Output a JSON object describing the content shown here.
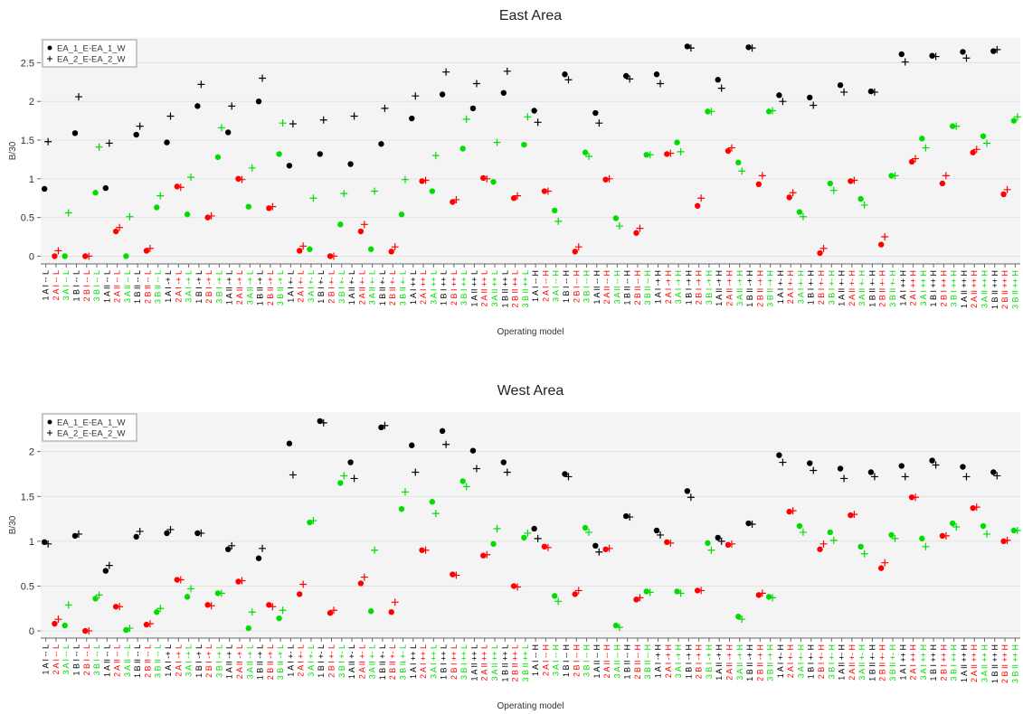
{
  "chart_data": [
    {
      "type": "scatter",
      "title": "East Area",
      "x_label": "Operating model",
      "y_label": "B/30",
      "categories": [
        "1 A I -- L",
        "2 A I -- L",
        "3 A I -- L",
        "1 B I -- L",
        "2 B I -- L",
        "3 B I -- L",
        "1 A II -- L",
        "2 A II -- L",
        "3 A II -- L",
        "1 B II -- L",
        "2 B II -- L",
        "3 B II -- L",
        "1 A I -+ L",
        "2 A I -+ L",
        "3 A I -+ L",
        "1 B I -+ L",
        "2 B I -+ L",
        "3 B I -+ L",
        "1 A II -+ L",
        "2 A II -+ L",
        "3 A II -+ L",
        "1 B II -+ L",
        "2 B II -+ L",
        "3 B II -+ L",
        "1 A I +- L",
        "2 A I +- L",
        "3 A I +- L",
        "1 B I +- L",
        "2 B I +- L",
        "3 B I +- L",
        "1 A II +- L",
        "2 A II +- L",
        "3 A II +- L",
        "1 B II +- L",
        "2 B II +- L",
        "3 B II +- L",
        "1 A I ++ L",
        "2 A I ++ L",
        "3 A I ++ L",
        "1 B I ++ L",
        "2 B I ++ L",
        "3 B I ++ L",
        "1 A II ++ L",
        "2 A II ++ L",
        "3 A II ++ L",
        "1 B II ++ L",
        "2 B II ++ L",
        "3 B II ++ L",
        "1 A I -- H",
        "2 A I -- H",
        "3 A I -- H",
        "1 B I -- H",
        "2 B I -- H",
        "3 B I -- H",
        "1 A II -- H",
        "2 A II -- H",
        "3 A II -- H",
        "1 B II -- H",
        "2 B II -- H",
        "3 B II -- H",
        "1 A I -+ H",
        "2 A I -+ H",
        "3 A I -+ H",
        "1 B I -+ H",
        "2 B I -+ H",
        "3 B I -+ H",
        "1 A II -+ H",
        "2 A II -+ H",
        "3 A II -+ H",
        "1 B II -+ H",
        "2 B II -+ H",
        "3 B II -+ H",
        "1 A I +- H",
        "2 A I +- H",
        "3 A I +- H",
        "1 B I +- H",
        "2 B I +- H",
        "3 B I +- H",
        "1 A II +- H",
        "2 A II +- H",
        "3 A II +- H",
        "1 B II +- H",
        "2 B II +- H",
        "3 B II +- H",
        "1 A I ++ H",
        "2 A I ++ H",
        "3 A I ++ H",
        "1 B I ++ H",
        "2 B I ++ H",
        "3 B I ++ H",
        "1 A II ++ H",
        "2 A II ++ H",
        "3 A II ++ H",
        "1 B II ++ H",
        "2 B II ++ H",
        "3 B II ++ H"
      ],
      "color_cycle": [
        "#000000",
        "#ff0000",
        "#00dd00"
      ],
      "series": [
        {
          "name": "EA_1_E-EA_1_W",
          "color": "#000000",
          "marker": "circle",
          "values": [
            0.87,
            0,
            0,
            1.59,
            0,
            0.82,
            0.88,
            0.32,
            0,
            1.57,
            0.07,
            0.63,
            1.47,
            0.9,
            0.54,
            1.94,
            0.5,
            1.28,
            1.6,
            1.0,
            0.64,
            2.0,
            0.62,
            1.32,
            1.17,
            0.07,
            0.09,
            1.32,
            0,
            0.41,
            1.19,
            0.32,
            0.09,
            1.45,
            0.06,
            0.54,
            1.78,
            0.97,
            0.84,
            2.09,
            0.7,
            1.39,
            1.91,
            1.01,
            0.96,
            2.11,
            0.75,
            1.44,
            1.88,
            0.84,
            0.59,
            2.35,
            0.06,
            1.34,
            1.85,
            0.99,
            0.49,
            2.33,
            0.3,
            1.31,
            2.35,
            1.32,
            1.47,
            2.71,
            0.65,
            1.87,
            2.28,
            1.36,
            1.21,
            2.7,
            0.93,
            1.87,
            2.08,
            0.76,
            0.57,
            2.05,
            0.04,
            0.94,
            2.21,
            0.97,
            0.74,
            2.13,
            0.15,
            1.04,
            2.61,
            1.22,
            1.52,
            2.59,
            0.94,
            1.68,
            2.64,
            1.34,
            1.55,
            2.65,
            0.8,
            1.75
          ]
        },
        {
          "name": "EA_2_E-EA_2_W",
          "color": "#000000",
          "marker": "plus",
          "values": [
            1.48,
            0.07,
            0.56,
            2.06,
            0,
            1.41,
            1.46,
            0.37,
            0.51,
            1.68,
            0.1,
            0.78,
            1.81,
            0.89,
            1.02,
            2.22,
            0.52,
            1.66,
            1.94,
            0.99,
            1.14,
            2.3,
            0.64,
            1.72,
            1.71,
            0.13,
            0.75,
            1.76,
            0,
            0.81,
            1.81,
            0.41,
            0.84,
            1.91,
            0.12,
            0.99,
            2.07,
            0.98,
            1.3,
            2.38,
            0.73,
            1.77,
            2.23,
            1.0,
            1.47,
            2.39,
            0.78,
            1.8,
            1.73,
            0.84,
            0.45,
            2.28,
            0.12,
            1.29,
            1.72,
            1.0,
            0.39,
            2.29,
            0.36,
            1.31,
            2.23,
            1.33,
            1.35,
            2.69,
            0.75,
            1.87,
            2.17,
            1.4,
            1.1,
            2.69,
            1.04,
            1.88,
            2.0,
            0.82,
            0.51,
            1.95,
            0.1,
            0.85,
            2.12,
            0.98,
            0.66,
            2.12,
            0.25,
            1.04,
            2.51,
            1.26,
            1.4,
            2.58,
            1.04,
            1.68,
            2.56,
            1.38,
            1.46,
            2.67,
            0.86,
            1.8
          ]
        }
      ],
      "ylim": [
        -0.1,
        2.82
      ],
      "yticks": [
        0,
        0.5,
        1,
        1.5,
        2,
        2.5
      ],
      "grid": true,
      "legend": "upper left"
    },
    {
      "type": "scatter",
      "title": "West Area",
      "x_label": "Operating model",
      "y_label": "B/30",
      "categories": [
        "1 A I -- L",
        "2 A I -- L",
        "3 A I -- L",
        "1 B I -- L",
        "2 B I -- L",
        "3 B I -- L",
        "1 A II -- L",
        "2 A II -- L",
        "3 A II -- L",
        "1 B II -- L",
        "2 B II -- L",
        "3 B II -- L",
        "1 A I -+ L",
        "2 A I -+ L",
        "3 A I -+ L",
        "1 B I -+ L",
        "2 B I -+ L",
        "3 B I -+ L",
        "1 A II -+ L",
        "2 A II -+ L",
        "3 A II -+ L",
        "1 B II -+ L",
        "2 B II -+ L",
        "3 B II -+ L",
        "1 A I +- L",
        "2 A I +- L",
        "3 A I +- L",
        "1 B I +- L",
        "2 B I +- L",
        "3 B I +- L",
        "1 A II +- L",
        "2 A II +- L",
        "3 A II +- L",
        "1 B II +- L",
        "2 B II +- L",
        "3 B II +- L",
        "1 A I ++ L",
        "2 A I ++ L",
        "3 A I ++ L",
        "1 B I ++ L",
        "2 B I ++ L",
        "3 B I ++ L",
        "1 A II ++ L",
        "2 A II ++ L",
        "3 A II ++ L",
        "1 B II ++ L",
        "2 B II ++ L",
        "3 B II ++ L",
        "1 A I -- H",
        "2 A I -- H",
        "3 A I -- H",
        "1 B I -- H",
        "2 B I -- H",
        "3 B I -- H",
        "1 A II -- H",
        "2 A II -- H",
        "3 A II -- H",
        "1 B II -- H",
        "2 B II -- H",
        "3 B II -- H",
        "1 A I -+ H",
        "2 A I -+ H",
        "3 A I -+ H",
        "1 B I -+ H",
        "2 B I -+ H",
        "3 B I -+ H",
        "1 A II -+ H",
        "2 A II -+ H",
        "3 A II -+ H",
        "1 B II -+ H",
        "2 B II -+ H",
        "3 B II -+ H",
        "1 A I +- H",
        "2 A I +- H",
        "3 A I +- H",
        "1 B I +- H",
        "2 B I +- H",
        "3 B I +- H",
        "1 A II +- H",
        "2 A II +- H",
        "3 A II +- H",
        "1 B II +- H",
        "2 B II +- H",
        "3 B II +- H",
        "1 A I ++ H",
        "2 A I ++ H",
        "3 A I ++ H",
        "1 B I ++ H",
        "2 B I ++ H",
        "3 B I ++ H",
        "1 A II ++ H",
        "2 A II ++ H",
        "3 A II ++ H",
        "1 B II ++ H",
        "2 B II ++ H",
        "3 B II ++ H"
      ],
      "color_cycle": [
        "#000000",
        "#ff0000",
        "#00dd00"
      ],
      "series": [
        {
          "name": "EA_1_E-EA_1_W",
          "color": "#000000",
          "marker": "circle",
          "values": [
            0.99,
            0.08,
            0.06,
            1.06,
            0,
            0.36,
            0.67,
            0.27,
            0.01,
            1.05,
            0.07,
            0.21,
            1.09,
            0.57,
            0.38,
            1.09,
            0.29,
            0.42,
            0.91,
            0.55,
            0.03,
            0.81,
            0.29,
            0.14,
            2.09,
            0.41,
            1.21,
            2.34,
            0.2,
            1.65,
            1.88,
            0.53,
            0.22,
            2.27,
            0.21,
            1.36,
            2.07,
            0.9,
            1.44,
            2.23,
            0.63,
            1.67,
            2.01,
            0.84,
            0.97,
            1.88,
            0.5,
            1.04,
            1.14,
            0.94,
            0.39,
            1.75,
            0.41,
            1.15,
            0.95,
            0.91,
            0.06,
            1.28,
            0.35,
            0.44,
            1.12,
            0.99,
            0.44,
            1.56,
            0.45,
            0.98,
            1.04,
            0.96,
            0.16,
            1.2,
            0.4,
            0.38,
            1.96,
            1.33,
            1.17,
            1.87,
            0.91,
            1.1,
            1.81,
            1.29,
            0.94,
            1.77,
            0.7,
            1.07,
            1.84,
            1.49,
            1.03,
            1.9,
            1.06,
            1.2,
            1.83,
            1.37,
            1.17,
            1.77,
            1.0,
            1.12
          ]
        },
        {
          "name": "EA_2_E-EA_2_W",
          "color": "#000000",
          "marker": "plus",
          "values": [
            0.97,
            0.13,
            0.29,
            1.08,
            0,
            0.4,
            0.73,
            0.27,
            0.03,
            1.11,
            0.08,
            0.25,
            1.13,
            0.57,
            0.47,
            1.09,
            0.28,
            0.42,
            0.95,
            0.56,
            0.21,
            0.92,
            0.27,
            0.23,
            1.74,
            0.52,
            1.23,
            2.32,
            0.23,
            1.73,
            1.7,
            0.6,
            0.9,
            2.29,
            0.32,
            1.55,
            1.77,
            0.9,
            1.31,
            2.08,
            0.62,
            1.61,
            1.81,
            0.85,
            1.14,
            1.77,
            0.49,
            1.09,
            1.03,
            0.93,
            0.33,
            1.72,
            0.45,
            1.1,
            0.88,
            0.92,
            0.04,
            1.27,
            0.37,
            0.43,
            1.07,
            0.98,
            0.42,
            1.49,
            0.45,
            0.9,
            1.0,
            0.97,
            0.13,
            1.19,
            0.42,
            0.37,
            1.88,
            1.34,
            1.1,
            1.79,
            0.97,
            1.01,
            1.7,
            1.3,
            0.86,
            1.72,
            0.76,
            1.03,
            1.72,
            1.49,
            0.94,
            1.85,
            1.06,
            1.16,
            1.72,
            1.38,
            1.08,
            1.73,
            1.01,
            1.12
          ]
        }
      ],
      "ylim": [
        -0.08,
        2.44
      ],
      "yticks": [
        0,
        0.5,
        1,
        1.5,
        2
      ],
      "grid": true,
      "legend": "upper left"
    }
  ]
}
